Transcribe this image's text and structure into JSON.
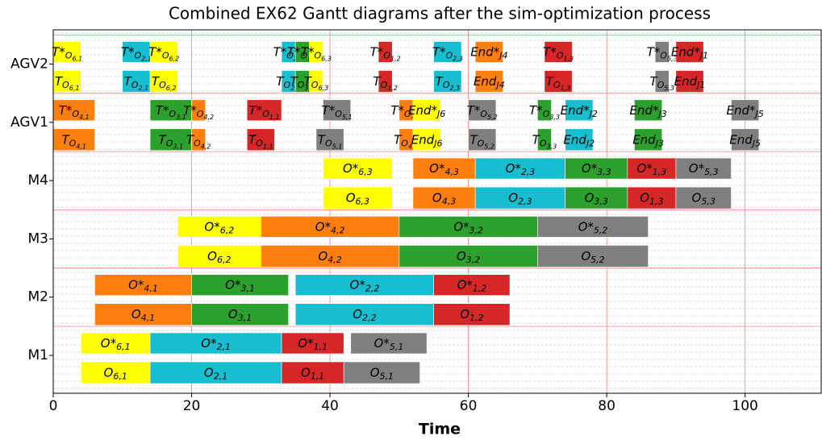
{
  "chart_data": {
    "type": "gantt",
    "title": "Combined EX62 Gantt diagrams after the sim-optimization process",
    "xlabel": "Time",
    "xlim": [
      0,
      111
    ],
    "xticks": [
      0,
      20,
      40,
      60,
      80,
      100
    ],
    "grid": true,
    "categories": [
      "M1",
      "M2",
      "M3",
      "M4",
      "AGV1",
      "AGV2"
    ],
    "rows": [
      {
        "optimized": [
          {
            "start": 4,
            "end": 14,
            "color": "#ffff00",
            "label": {
              "main": "O*",
              "sub": "6,1"
            }
          },
          {
            "start": 14,
            "end": 33,
            "color": "#17becf",
            "label": {
              "main": "O*",
              "sub": "2,1"
            }
          },
          {
            "start": 33,
            "end": 42,
            "color": "#d62728",
            "label": {
              "main": "O*",
              "sub": "1,1"
            }
          },
          {
            "start": 43,
            "end": 54,
            "color": "#7f7f7f",
            "label": {
              "main": "O*",
              "sub": "5,1"
            }
          }
        ],
        "simulated": [
          {
            "start": 4,
            "end": 14,
            "color": "#ffff00",
            "label": {
              "main": "O",
              "sub": "6,1"
            }
          },
          {
            "start": 14,
            "end": 33,
            "color": "#17becf",
            "label": {
              "main": "O",
              "sub": "2,1"
            }
          },
          {
            "start": 33,
            "end": 42,
            "color": "#d62728",
            "label": {
              "main": "O",
              "sub": "1,1"
            }
          },
          {
            "start": 42,
            "end": 53,
            "color": "#7f7f7f",
            "label": {
              "main": "O",
              "sub": "5,1"
            }
          }
        ]
      },
      {
        "optimized": [
          {
            "start": 6,
            "end": 20,
            "color": "#ff7f0e",
            "label": {
              "main": "O*",
              "sub": "4,1"
            }
          },
          {
            "start": 20,
            "end": 34,
            "color": "#2ca02c",
            "label": {
              "main": "O*",
              "sub": "3,1"
            }
          },
          {
            "start": 35,
            "end": 55,
            "color": "#17becf",
            "label": {
              "main": "O*",
              "sub": "2,2"
            }
          },
          {
            "start": 55,
            "end": 66,
            "color": "#d62728",
            "label": {
              "main": "O*",
              "sub": "1,2"
            }
          }
        ],
        "simulated": [
          {
            "start": 6,
            "end": 20,
            "color": "#ff7f0e",
            "label": {
              "main": "O",
              "sub": "4,1"
            }
          },
          {
            "start": 20,
            "end": 34,
            "color": "#2ca02c",
            "label": {
              "main": "O",
              "sub": "3,1"
            }
          },
          {
            "start": 35,
            "end": 55,
            "color": "#17becf",
            "label": {
              "main": "O",
              "sub": "2,2"
            }
          },
          {
            "start": 55,
            "end": 66,
            "color": "#d62728",
            "label": {
              "main": "O",
              "sub": "1,2"
            }
          }
        ]
      },
      {
        "optimized": [
          {
            "start": 18,
            "end": 30,
            "color": "#ffff00",
            "label": {
              "main": "O*",
              "sub": "6,2"
            }
          },
          {
            "start": 30,
            "end": 50,
            "color": "#ff7f0e",
            "label": {
              "main": "O*",
              "sub": "4,2"
            }
          },
          {
            "start": 50,
            "end": 70,
            "color": "#2ca02c",
            "label": {
              "main": "O*",
              "sub": "3,2"
            }
          },
          {
            "start": 70,
            "end": 86,
            "color": "#7f7f7f",
            "label": {
              "main": "O*",
              "sub": "5,2"
            }
          }
        ],
        "simulated": [
          {
            "start": 18,
            "end": 30,
            "color": "#ffff00",
            "label": {
              "main": "O",
              "sub": "6,2"
            }
          },
          {
            "start": 30,
            "end": 50,
            "color": "#ff7f0e",
            "label": {
              "main": "O",
              "sub": "4,2"
            }
          },
          {
            "start": 50,
            "end": 70,
            "color": "#2ca02c",
            "label": {
              "main": "O",
              "sub": "3,2"
            }
          },
          {
            "start": 70,
            "end": 86,
            "color": "#7f7f7f",
            "label": {
              "main": "O",
              "sub": "5,2"
            }
          }
        ]
      },
      {
        "optimized": [
          {
            "start": 39,
            "end": 49,
            "color": "#ffff00",
            "label": {
              "main": "O*",
              "sub": "6,3"
            }
          },
          {
            "start": 52,
            "end": 61,
            "color": "#ff7f0e",
            "label": {
              "main": "O*",
              "sub": "4,3"
            }
          },
          {
            "start": 61,
            "end": 74,
            "color": "#17becf",
            "label": {
              "main": "O*",
              "sub": "2,3"
            }
          },
          {
            "start": 74,
            "end": 83,
            "color": "#2ca02c",
            "label": {
              "main": "O*",
              "sub": "3,3"
            }
          },
          {
            "start": 83,
            "end": 90,
            "color": "#d62728",
            "label": {
              "main": "O*",
              "sub": "1,3"
            }
          },
          {
            "start": 90,
            "end": 98,
            "color": "#7f7f7f",
            "label": {
              "main": "O*",
              "sub": "5,3"
            }
          }
        ],
        "simulated": [
          {
            "start": 39,
            "end": 49,
            "color": "#ffff00",
            "label": {
              "main": "O",
              "sub": "6,3"
            }
          },
          {
            "start": 52,
            "end": 61,
            "color": "#ff7f0e",
            "label": {
              "main": "O",
              "sub": "4,3"
            }
          },
          {
            "start": 61,
            "end": 74,
            "color": "#17becf",
            "label": {
              "main": "O",
              "sub": "2,3"
            }
          },
          {
            "start": 74,
            "end": 83,
            "color": "#2ca02c",
            "label": {
              "main": "O",
              "sub": "3,3"
            }
          },
          {
            "start": 83,
            "end": 90,
            "color": "#d62728",
            "label": {
              "main": "O",
              "sub": "1,3"
            }
          },
          {
            "start": 90,
            "end": 98,
            "color": "#7f7f7f",
            "label": {
              "main": "O",
              "sub": "5,3"
            }
          }
        ]
      },
      {
        "optimized": [
          {
            "start": 0,
            "end": 6,
            "color": "#ff7f0e",
            "label": {
              "main": "T*",
              "sub": "O",
              "subsub": "4,1"
            }
          },
          {
            "start": 14,
            "end": 20,
            "color": "#2ca02c",
            "label": {
              "main": "T*",
              "sub": "O",
              "subsub": "3,1"
            }
          },
          {
            "start": 20,
            "end": 22,
            "color": "#ff7f0e",
            "label": {
              "main": "T*",
              "sub": "O",
              "subsub": "4,2"
            }
          },
          {
            "start": 28,
            "end": 33,
            "color": "#d62728",
            "label": {
              "main": "T*",
              "sub": "O",
              "subsub": "1,1"
            }
          },
          {
            "start": 39,
            "end": 43,
            "color": "#7f7f7f",
            "label": {
              "main": "T*",
              "sub": "O",
              "subsub": "5,1"
            }
          },
          {
            "start": 50,
            "end": 52,
            "color": "#ff7f0e",
            "label": {
              "main": "T*",
              "sub": "O",
              "subsub": "4,3"
            }
          },
          {
            "start": 52,
            "end": 56,
            "color": "#ffff00",
            "label": {
              "main": "End*",
              "sub": "J6"
            }
          },
          {
            "start": 60,
            "end": 64,
            "color": "#7f7f7f",
            "label": {
              "main": "T*",
              "sub": "O",
              "subsub": "5,2"
            }
          },
          {
            "start": 70,
            "end": 72,
            "color": "#2ca02c",
            "label": {
              "main": "T*",
              "sub": "O",
              "subsub": "3,3"
            }
          },
          {
            "start": 74,
            "end": 78,
            "color": "#17becf",
            "label": {
              "main": "End*",
              "sub": "J2"
            }
          },
          {
            "start": 84,
            "end": 88,
            "color": "#2ca02c",
            "label": {
              "main": "End*",
              "sub": "J3"
            }
          },
          {
            "start": 98,
            "end": 102,
            "color": "#7f7f7f",
            "label": {
              "main": "End*",
              "sub": "J5"
            }
          }
        ],
        "simulated": [
          {
            "start": 0,
            "end": 6,
            "color": "#ff7f0e",
            "label": {
              "main": "T",
              "sub": "O",
              "subsub": "4,1"
            }
          },
          {
            "start": 14,
            "end": 20,
            "color": "#2ca02c",
            "label": {
              "main": "T",
              "sub": "O",
              "subsub": "3,1"
            }
          },
          {
            "start": 20,
            "end": 22,
            "color": "#ff7f0e",
            "label": {
              "main": "T",
              "sub": "O",
              "subsub": "4,2"
            }
          },
          {
            "start": 28,
            "end": 32,
            "color": "#d62728",
            "label": {
              "main": "T",
              "sub": "O",
              "subsub": "1,1"
            }
          },
          {
            "start": 38,
            "end": 42,
            "color": "#7f7f7f",
            "label": {
              "main": "T",
              "sub": "O",
              "subsub": "5,1"
            }
          },
          {
            "start": 50,
            "end": 52,
            "color": "#ff7f0e",
            "label": {
              "main": "T",
              "sub": "O",
              "subsub": "4,3"
            }
          },
          {
            "start": 52,
            "end": 56,
            "color": "#ffff00",
            "label": {
              "main": "End",
              "sub": "J6"
            }
          },
          {
            "start": 60,
            "end": 64,
            "color": "#7f7f7f",
            "label": {
              "main": "T",
              "sub": "O",
              "subsub": "5,2"
            }
          },
          {
            "start": 70,
            "end": 72,
            "color": "#2ca02c",
            "label": {
              "main": "T",
              "sub": "O",
              "subsub": "3,3"
            }
          },
          {
            "start": 74,
            "end": 78,
            "color": "#17becf",
            "label": {
              "main": "End",
              "sub": "J2"
            }
          },
          {
            "start": 84,
            "end": 88,
            "color": "#2ca02c",
            "label": {
              "main": "End",
              "sub": "J3"
            }
          },
          {
            "start": 98,
            "end": 102,
            "color": "#7f7f7f",
            "label": {
              "main": "End",
              "sub": "J5"
            }
          }
        ]
      },
      {
        "optimized": [
          {
            "start": 0,
            "end": 4,
            "color": "#ffff00",
            "label": {
              "main": "T*",
              "sub": "O",
              "subsub": "6,1"
            }
          },
          {
            "start": 10,
            "end": 14,
            "color": "#17becf",
            "label": {
              "main": "T*",
              "sub": "O",
              "subsub": "2,1"
            }
          },
          {
            "start": 14,
            "end": 18,
            "color": "#ffff00",
            "label": {
              "main": "T*",
              "sub": "O",
              "subsub": "6,2"
            }
          },
          {
            "start": 33,
            "end": 35,
            "color": "#17becf",
            "label": {
              "main": "T*",
              "sub": "O",
              "subsub": "2,2"
            }
          },
          {
            "start": 35,
            "end": 37,
            "color": "#2ca02c",
            "label": {
              "main": "T*",
              "sub": "O",
              "subsub": "3,2"
            }
          },
          {
            "start": 37,
            "end": 39,
            "color": "#ffff00",
            "label": {
              "main": "T*",
              "sub": "O",
              "subsub": "6,3"
            }
          },
          {
            "start": 47,
            "end": 49,
            "color": "#d62728",
            "label": {
              "main": "T*",
              "sub": "O",
              "subsub": "1,2"
            }
          },
          {
            "start": 55,
            "end": 59,
            "color": "#17becf",
            "label": {
              "main": "T*",
              "sub": "O",
              "subsub": "2,3"
            }
          },
          {
            "start": 61,
            "end": 65,
            "color": "#ff7f0e",
            "label": {
              "main": "End*",
              "sub": "J4"
            }
          },
          {
            "start": 71,
            "end": 75,
            "color": "#d62728",
            "label": {
              "main": "T*",
              "sub": "O",
              "subsub": "1,3"
            }
          },
          {
            "start": 87,
            "end": 89,
            "color": "#7f7f7f",
            "label": {
              "main": "T*",
              "sub": "O",
              "subsub": "5,3"
            }
          },
          {
            "start": 90,
            "end": 94,
            "color": "#d62728",
            "label": {
              "main": "End*",
              "sub": "J1"
            }
          }
        ],
        "simulated": [
          {
            "start": 0,
            "end": 4,
            "color": "#ffff00",
            "label": {
              "main": "T",
              "sub": "O",
              "subsub": "6,1"
            }
          },
          {
            "start": 10,
            "end": 14,
            "color": "#17becf",
            "label": {
              "main": "T",
              "sub": "O",
              "subsub": "2,1"
            }
          },
          {
            "start": 14,
            "end": 18,
            "color": "#ffff00",
            "label": {
              "main": "T",
              "sub": "O",
              "subsub": "6,2"
            }
          },
          {
            "start": 33,
            "end": 35,
            "color": "#17becf",
            "label": {
              "main": "T",
              "sub": "O",
              "subsub": "2,2"
            }
          },
          {
            "start": 35,
            "end": 37,
            "color": "#2ca02c",
            "label": {
              "main": "T",
              "sub": "O",
              "subsub": "3,2"
            }
          },
          {
            "start": 37,
            "end": 39,
            "color": "#ffff00",
            "label": {
              "main": "T",
              "sub": "O",
              "subsub": "6,3"
            }
          },
          {
            "start": 47,
            "end": 49,
            "color": "#d62728",
            "label": {
              "main": "T",
              "sub": "O",
              "subsub": "1,2"
            }
          },
          {
            "start": 55,
            "end": 59,
            "color": "#17becf",
            "label": {
              "main": "T",
              "sub": "O",
              "subsub": "2,3"
            }
          },
          {
            "start": 61,
            "end": 65,
            "color": "#ff7f0e",
            "label": {
              "main": "End",
              "sub": "J4"
            }
          },
          {
            "start": 71,
            "end": 75,
            "color": "#d62728",
            "label": {
              "main": "T",
              "sub": "O",
              "subsub": "1,3"
            }
          },
          {
            "start": 87,
            "end": 89,
            "color": "#7f7f7f",
            "label": {
              "main": "T",
              "sub": "O",
              "subsub": "5,3"
            }
          },
          {
            "start": 90,
            "end": 94,
            "color": "#d62728",
            "label": {
              "main": "End",
              "sub": "J1"
            }
          }
        ]
      }
    ]
  }
}
